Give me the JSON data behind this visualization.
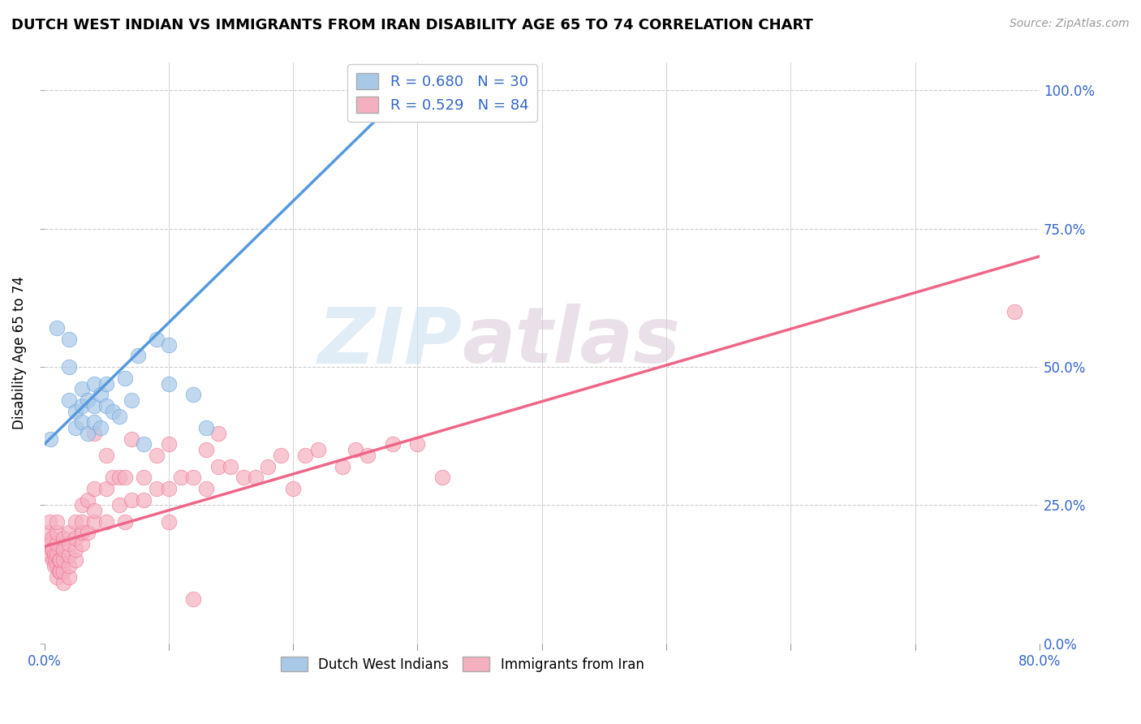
{
  "title": "DUTCH WEST INDIAN VS IMMIGRANTS FROM IRAN DISABILITY AGE 65 TO 74 CORRELATION CHART",
  "source": "Source: ZipAtlas.com",
  "ylabel": "Disability Age 65 to 74",
  "xlim": [
    0.0,
    0.8
  ],
  "ylim": [
    0.0,
    1.05
  ],
  "blue_R": 0.68,
  "blue_N": 30,
  "pink_R": 0.529,
  "pink_N": 84,
  "blue_color": "#a8c8e8",
  "pink_color": "#f5b0c0",
  "blue_line_color": "#5599dd",
  "pink_line_color": "#ee6688",
  "legend_text_color": "#3366cc",
  "watermark_zip": "ZIP",
  "watermark_atlas": "atlas",
  "blue_line_x0": 0.0,
  "blue_line_y0": 0.36,
  "blue_line_x1": 0.3,
  "blue_line_y1": 1.02,
  "pink_line_x0": 0.0,
  "pink_line_y0": 0.175,
  "pink_line_x1": 0.8,
  "pink_line_y1": 0.7,
  "blue_scatter_x": [
    0.005,
    0.01,
    0.02,
    0.02,
    0.02,
    0.025,
    0.025,
    0.03,
    0.03,
    0.03,
    0.035,
    0.035,
    0.04,
    0.04,
    0.04,
    0.045,
    0.045,
    0.05,
    0.05,
    0.055,
    0.06,
    0.065,
    0.07,
    0.075,
    0.08,
    0.09,
    0.1,
    0.1,
    0.12,
    0.13
  ],
  "blue_scatter_y": [
    0.37,
    0.57,
    0.44,
    0.5,
    0.55,
    0.39,
    0.42,
    0.4,
    0.43,
    0.46,
    0.38,
    0.44,
    0.4,
    0.43,
    0.47,
    0.39,
    0.45,
    0.43,
    0.47,
    0.42,
    0.41,
    0.48,
    0.44,
    0.52,
    0.36,
    0.55,
    0.47,
    0.54,
    0.45,
    0.39
  ],
  "pink_scatter_x": [
    0.003,
    0.004,
    0.005,
    0.005,
    0.006,
    0.006,
    0.007,
    0.007,
    0.008,
    0.008,
    0.009,
    0.01,
    0.01,
    0.01,
    0.01,
    0.01,
    0.01,
    0.012,
    0.012,
    0.013,
    0.013,
    0.015,
    0.015,
    0.015,
    0.015,
    0.015,
    0.02,
    0.02,
    0.02,
    0.02,
    0.02,
    0.025,
    0.025,
    0.025,
    0.025,
    0.03,
    0.03,
    0.03,
    0.03,
    0.035,
    0.035,
    0.04,
    0.04,
    0.04,
    0.04,
    0.05,
    0.05,
    0.05,
    0.055,
    0.06,
    0.06,
    0.065,
    0.065,
    0.07,
    0.07,
    0.08,
    0.08,
    0.09,
    0.09,
    0.1,
    0.1,
    0.1,
    0.11,
    0.12,
    0.12,
    0.13,
    0.13,
    0.14,
    0.14,
    0.15,
    0.16,
    0.17,
    0.18,
    0.19,
    0.2,
    0.21,
    0.22,
    0.24,
    0.25,
    0.26,
    0.28,
    0.3,
    0.32,
    0.78
  ],
  "pink_scatter_y": [
    0.2,
    0.22,
    0.16,
    0.18,
    0.17,
    0.19,
    0.15,
    0.17,
    0.14,
    0.16,
    0.15,
    0.12,
    0.14,
    0.16,
    0.18,
    0.2,
    0.22,
    0.13,
    0.15,
    0.13,
    0.15,
    0.11,
    0.13,
    0.15,
    0.17,
    0.19,
    0.12,
    0.14,
    0.16,
    0.18,
    0.2,
    0.15,
    0.17,
    0.19,
    0.22,
    0.18,
    0.2,
    0.22,
    0.25,
    0.2,
    0.26,
    0.22,
    0.24,
    0.28,
    0.38,
    0.22,
    0.28,
    0.34,
    0.3,
    0.25,
    0.3,
    0.22,
    0.3,
    0.26,
    0.37,
    0.26,
    0.3,
    0.28,
    0.34,
    0.22,
    0.28,
    0.36,
    0.3,
    0.08,
    0.3,
    0.28,
    0.35,
    0.32,
    0.38,
    0.32,
    0.3,
    0.3,
    0.32,
    0.34,
    0.28,
    0.34,
    0.35,
    0.32,
    0.35,
    0.34,
    0.36,
    0.36,
    0.3,
    0.6
  ]
}
